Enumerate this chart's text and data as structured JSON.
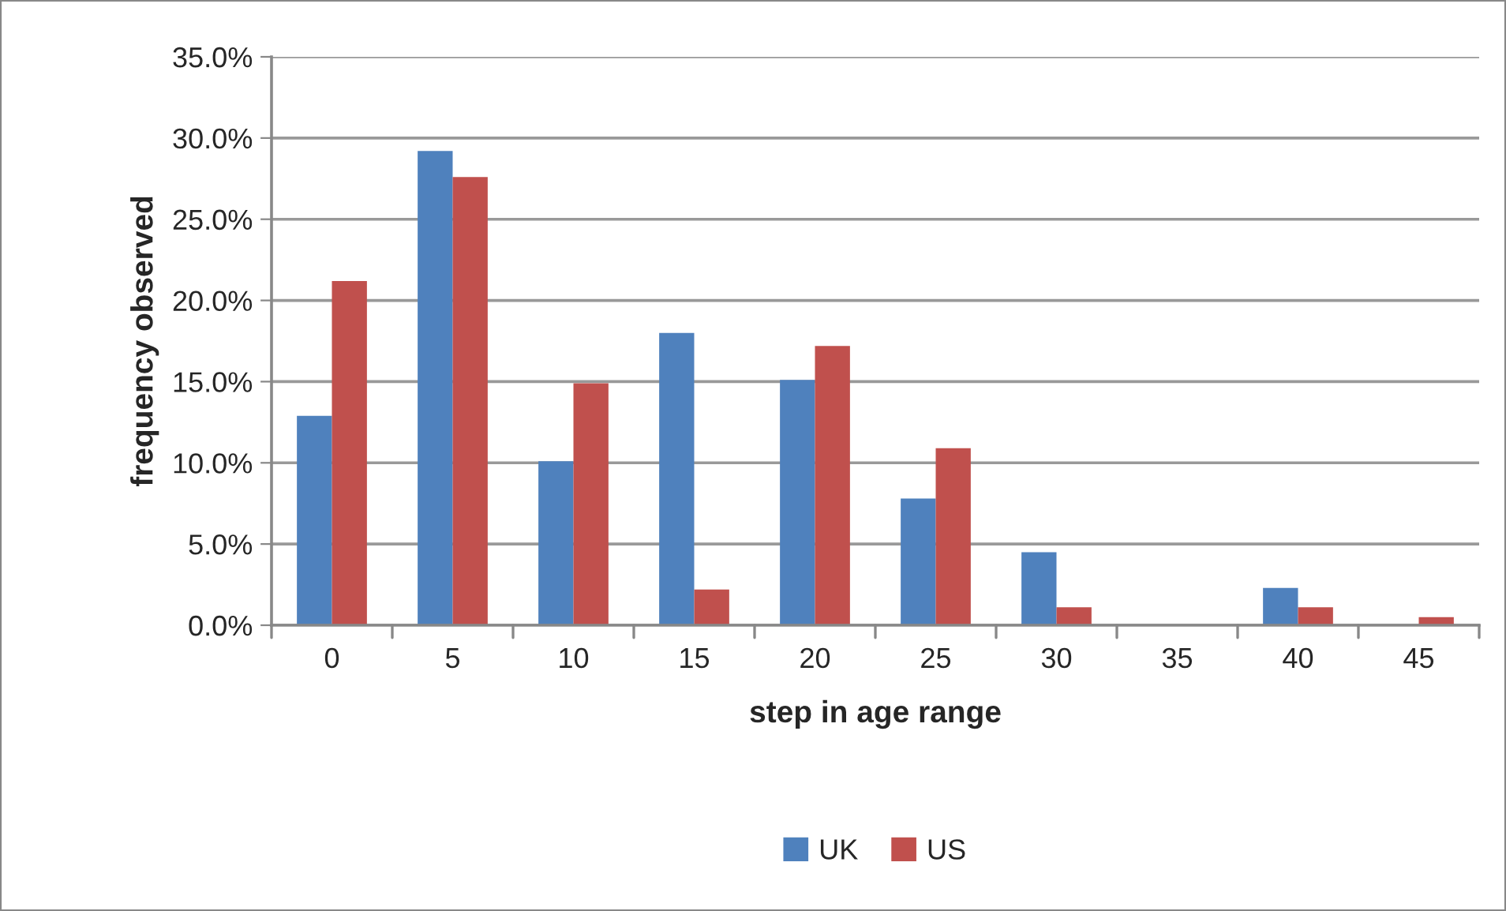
{
  "chart_data": {
    "type": "bar",
    "xlabel": "step in age range",
    "ylabel": "frequency observed",
    "categories": [
      "0",
      "5",
      "10",
      "15",
      "20",
      "25",
      "30",
      "35",
      "40",
      "45"
    ],
    "series": [
      {
        "name": "UK",
        "color": "#4f81bd",
        "values": [
          12.9,
          29.2,
          10.1,
          18.0,
          15.1,
          7.8,
          4.5,
          0,
          2.3,
          0
        ]
      },
      {
        "name": "US",
        "color": "#c0504d",
        "values": [
          21.2,
          27.6,
          14.9,
          2.2,
          17.2,
          10.9,
          1.1,
          0,
          1.1,
          0.5
        ]
      }
    ],
    "ylim": [
      0,
      35
    ],
    "yticks": [
      {
        "value": 0,
        "label": "0.0%"
      },
      {
        "value": 5,
        "label": "5.0%"
      },
      {
        "value": 10,
        "label": "10.0%"
      },
      {
        "value": 15,
        "label": "15.0%"
      },
      {
        "value": 20,
        "label": "20.0%"
      },
      {
        "value": 25,
        "label": "25.0%"
      },
      {
        "value": 30,
        "label": "30.0%"
      },
      {
        "value": 35,
        "label": "35.0%"
      }
    ],
    "grid": "y",
    "legend": "bottom"
  }
}
